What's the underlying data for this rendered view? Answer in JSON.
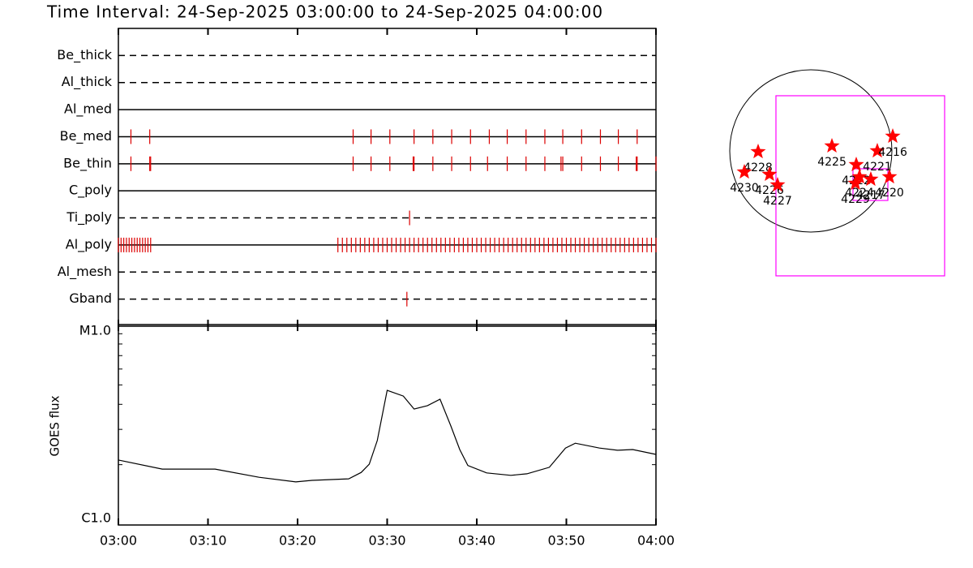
{
  "chart_data": [
    {
      "type": "timeline",
      "title": "Time Interval: 24-Sep-2025 03:00:00 to 24-Sep-2025 04:00:00",
      "xlim": [
        0,
        60
      ],
      "xticks": [
        0,
        10,
        20,
        30,
        40,
        50,
        60
      ],
      "event_color": "#dd0000",
      "rows": [
        {
          "name": "Be_thick",
          "style": "dashed",
          "events": []
        },
        {
          "name": "Al_thick",
          "style": "dashed",
          "events": []
        },
        {
          "name": "Al_med",
          "style": "solid",
          "events": []
        },
        {
          "name": "Be_med",
          "style": "solid",
          "events": [
            1.4,
            3.5,
            26.2,
            28.2,
            30.3,
            33.0,
            35.1,
            37.2,
            39.3,
            41.4,
            43.4,
            45.5,
            47.6,
            49.6,
            51.7,
            53.8,
            55.8,
            57.9
          ]
        },
        {
          "name": "Be_thin",
          "style": "solid",
          "events": [
            1.4,
            3.5,
            3.6,
            26.2,
            28.2,
            30.3,
            32.9,
            33.0,
            35.1,
            37.2,
            39.3,
            41.2,
            43.4,
            45.5,
            47.6,
            49.4,
            49.6,
            51.7,
            53.8,
            55.8,
            57.8,
            57.9,
            60.0
          ]
        },
        {
          "name": "C_poly",
          "style": "solid",
          "events": []
        },
        {
          "name": "Ti_poly",
          "style": "dashed",
          "events": [
            32.5
          ]
        },
        {
          "name": "Al_poly",
          "style": "solid",
          "events": [
            0,
            0.3,
            0.6,
            0.9,
            1.2,
            1.5,
            1.8,
            2.1,
            2.4,
            2.7,
            3.0,
            3.3,
            3.6,
            24.5,
            25,
            25.5,
            26,
            26.5,
            27,
            27.5,
            28,
            28.5,
            29,
            29.5,
            30,
            30.5,
            31,
            31.5,
            32,
            32.5,
            33,
            33.5,
            34,
            34.5,
            35,
            35.5,
            36,
            36.5,
            37,
            37.5,
            38,
            38.5,
            39,
            39.5,
            40,
            40.5,
            41,
            41.5,
            42,
            42.5,
            43,
            43.5,
            44,
            44.5,
            45,
            45.5,
            46,
            46.5,
            47,
            47.5,
            48,
            48.5,
            49,
            49.5,
            50,
            50.5,
            51,
            51.5,
            52,
            52.5,
            53,
            53.5,
            54,
            54.5,
            55,
            55.5,
            56,
            56.5,
            57,
            57.5,
            58,
            58.5,
            59,
            59.5,
            60
          ]
        },
        {
          "name": "Al_mesh",
          "style": "dashed",
          "events": []
        },
        {
          "name": "Gband",
          "style": "dashed",
          "events": [
            32.2
          ]
        }
      ]
    },
    {
      "type": "line",
      "ylabel": "GOES flux",
      "log_y": true,
      "color": "#000000",
      "x": [
        0,
        4.9,
        10.8,
        15.7,
        19.8,
        21.6,
        25.7,
        27.1,
        28.0,
        28.9,
        30.0,
        31.8,
        33.0,
        34.5,
        35.9,
        37.1,
        38.1,
        39.0,
        41.1,
        43.8,
        45.6,
        48.1,
        49.9,
        51.0,
        53.7,
        55.7,
        57.4,
        60.0
      ],
      "values": [
        2.11e-06,
        1.9e-06,
        1.9e-06,
        1.73e-06,
        1.64e-06,
        1.67e-06,
        1.7e-06,
        1.83e-06,
        2.01e-06,
        2.64e-06,
        4.7e-06,
        4.4e-06,
        3.79e-06,
        3.94e-06,
        4.24e-06,
        3.12e-06,
        2.38e-06,
        1.98e-06,
        1.82e-06,
        1.77e-06,
        1.8e-06,
        1.94e-06,
        2.42e-06,
        2.56e-06,
        2.42e-06,
        2.36e-06,
        2.38e-06,
        2.25e-06
      ],
      "xlim": [
        0,
        60
      ],
      "xticks": [
        {
          "value": 0,
          "label": "03:00"
        },
        {
          "value": 10,
          "label": "03:10"
        },
        {
          "value": 20,
          "label": "03:20"
        },
        {
          "value": 30,
          "label": "03:30"
        },
        {
          "value": 40,
          "label": "03:40"
        },
        {
          "value": 50,
          "label": "03:50"
        },
        {
          "value": 60,
          "label": "04:00"
        }
      ],
      "ylim": [
        1e-06,
        1e-05
      ],
      "yticks": [
        {
          "value": 1e-06,
          "label": "C1.0"
        },
        {
          "value": 1e-05,
          "label": "M1.0"
        }
      ],
      "yminorticks": [
        2e-06,
        3e-06,
        4e-06,
        5e-06,
        6e-06,
        7e-06,
        8e-06,
        9e-06
      ]
    },
    {
      "type": "map",
      "color": "#ff0000",
      "box_color": "#ff00ff",
      "points": [
        {
          "label": "4228",
          "x": -624,
          "y": -10
        },
        {
          "label": "4230",
          "x": -787,
          "y": -250
        },
        {
          "label": "4226",
          "x": -490,
          "y": -278
        },
        {
          "label": "4227",
          "x": -394,
          "y": -403
        },
        {
          "label": "4225",
          "x": 250,
          "y": 58
        },
        {
          "label": "4221",
          "x": 787,
          "y": 0
        },
        {
          "label": "4216",
          "x": 970,
          "y": 173
        },
        {
          "label": "4222",
          "x": 538,
          "y": -163
        },
        {
          "label": "4224",
          "x": 576,
          "y": -307
        },
        {
          "label": "4229",
          "x": 528,
          "y": -384
        },
        {
          "label": "4217",
          "x": 710,
          "y": -336
        },
        {
          "label": "4220",
          "x": 931,
          "y": -307
        }
      ],
      "boxes": [
        {
          "x": [
            -413,
            1584
          ],
          "y": [
            -1478,
            653
          ]
        },
        {
          "x": [
            499,
            912
          ],
          "y": [
            -586,
            -211
          ]
        }
      ]
    }
  ]
}
